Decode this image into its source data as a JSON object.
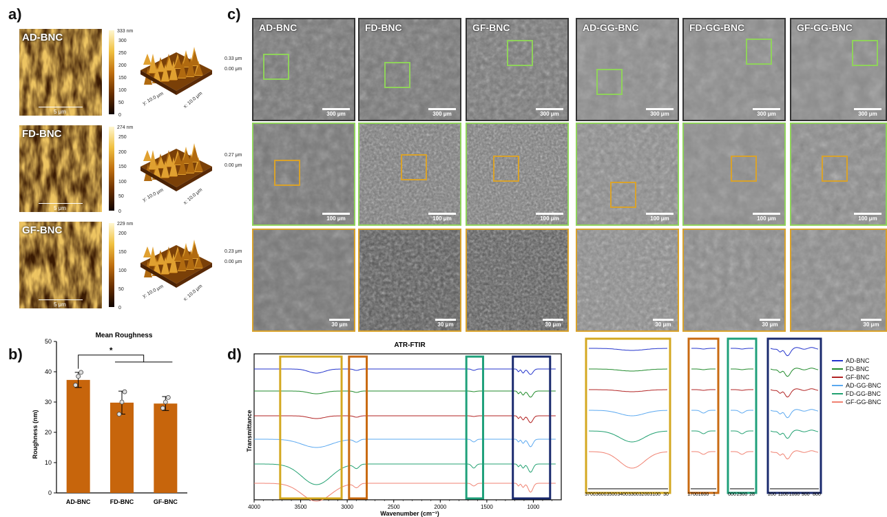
{
  "panels": {
    "a": "a)",
    "b": "b)",
    "c": "c)",
    "d": "d)"
  },
  "afm": [
    {
      "name": "AD-BNC",
      "max_label": "333 nm",
      "ticks": [
        "300",
        "250",
        "200",
        "150",
        "100",
        "50",
        "0"
      ],
      "height_top": "0.33 μm",
      "height_bottom": "0.00 μm",
      "scale": "5 μm",
      "y_axis": "y: 10.0 μm",
      "x_axis": "x: 10.0 μm"
    },
    {
      "name": "FD-BNC",
      "max_label": "274 nm",
      "ticks": [
        "250",
        "200",
        "150",
        "100",
        "50",
        "0"
      ],
      "height_top": "0.27 μm",
      "height_bottom": "0.00 μm",
      "scale": "5 μm",
      "y_axis": "y: 10.0 μm",
      "x_axis": "x: 10.0 μm"
    },
    {
      "name": "GF-BNC",
      "max_label": "229 nm",
      "ticks": [
        "200",
        "150",
        "100",
        "50",
        "0"
      ],
      "height_top": "0.23 μm",
      "height_bottom": "0.00 μm",
      "scale": "5 μm",
      "y_axis": "y: 10.0 μm",
      "x_axis": "x: 10.0 μm"
    }
  ],
  "sem": {
    "columns": [
      "AD-BNC",
      "FD-BNC",
      "GF-BNC",
      "AD-GG-BNC",
      "FD-GG-BNC",
      "GF-GG-BNC"
    ],
    "scales": [
      "300 μm",
      "100 μm",
      "30 μm"
    ],
    "colors": {
      "green": "#8fd35a",
      "orange": "#d9a22a",
      "gray_border": "#333333"
    }
  },
  "chart_data": [
    {
      "type": "bar",
      "title": "Mean Roughness",
      "xlabel": "",
      "ylabel": "Roughness (nm)",
      "categories": [
        "AD-BNC",
        "FD-BNC",
        "GF-BNC"
      ],
      "values": [
        37.3,
        29.8,
        29.5
      ],
      "errors": [
        2.5,
        3.8,
        2.3
      ],
      "points": [
        [
          35.6,
          38.5,
          39.8
        ],
        [
          26.0,
          30.0,
          33.4
        ],
        [
          28.0,
          30.0,
          31.5
        ]
      ],
      "ylim": [
        0,
        50
      ],
      "yticks": [
        "0",
        "10",
        "20",
        "30",
        "40",
        "50"
      ],
      "significance": "*",
      "color": "#c7650c"
    },
    {
      "type": "line",
      "title": "ATR-FTIR",
      "xlabel": "Wavenumber (cm⁻¹)",
      "ylabel": "Transmittance",
      "xlim": [
        4000,
        700
      ],
      "xticks": [
        "4000",
        "3500",
        "3000",
        "2500",
        "2000",
        "1500",
        "1000"
      ],
      "series": [
        {
          "name": "AD-BNC",
          "color": "#2233cc"
        },
        {
          "name": "FD-BNC",
          "color": "#1f8a2a"
        },
        {
          "name": "GF-BNC",
          "color": "#b22222"
        },
        {
          "name": "AD-GG-BNC",
          "color": "#5aa8f0"
        },
        {
          "name": "FD-GG-BNC",
          "color": "#20a070"
        },
        {
          "name": "GF-GG-BNC",
          "color": "#f08070"
        }
      ],
      "zoom_ticks": [
        [
          "3700",
          "3600",
          "3500",
          "3400",
          "3300",
          "3200",
          "3100",
          "30"
        ],
        [
          "1700",
          "1600",
          "1"
        ],
        [
          "000",
          "2900",
          "28"
        ],
        [
          "200",
          "1100",
          "1000",
          "900",
          "800"
        ]
      ],
      "box_colors": [
        "#d4a820",
        "#c96a10",
        "#1fa07a",
        "#1a2a6e"
      ]
    }
  ]
}
